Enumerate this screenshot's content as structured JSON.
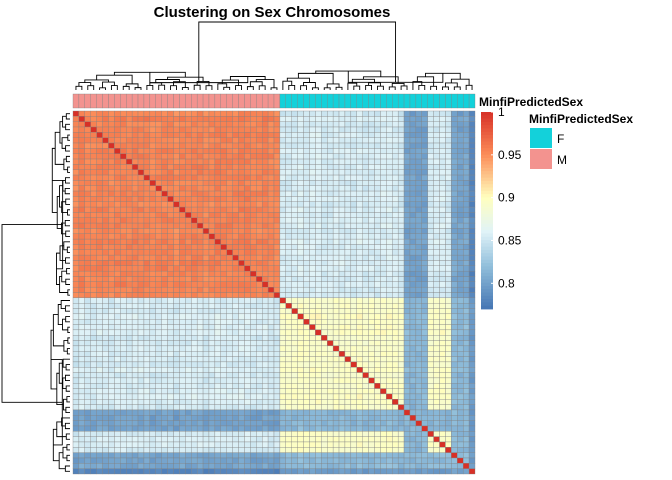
{
  "chart_data": {
    "type": "heatmap",
    "title": "Clustering on Sex Chromosomes",
    "n_samples": 68,
    "annotation": {
      "name": "MinfiPredictedSex",
      "sample_labels_in_order": [
        "M",
        "M",
        "M",
        "M",
        "M",
        "M",
        "M",
        "M",
        "M",
        "M",
        "M",
        "M",
        "M",
        "M",
        "M",
        "M",
        "M",
        "M",
        "M",
        "M",
        "M",
        "M",
        "M",
        "M",
        "M",
        "M",
        "M",
        "M",
        "M",
        "M",
        "M",
        "M",
        "M",
        "M",
        "M",
        "F",
        "F",
        "F",
        "F",
        "F",
        "F",
        "F",
        "F",
        "F",
        "F",
        "F",
        "F",
        "F",
        "F",
        "F",
        "F",
        "F",
        "F",
        "F",
        "F",
        "F",
        "F",
        "F",
        "F",
        "F",
        "F",
        "F",
        "F",
        "F",
        "F",
        "F",
        "F",
        "F"
      ],
      "legend_title": "MinfiPredictedSex",
      "levels": [
        {
          "label": "F",
          "color": "#13D1DA"
        },
        {
          "label": "M",
          "color": "#F3938F"
        }
      ]
    },
    "color_scale": {
      "title": "",
      "range": [
        0.77,
        1.0
      ],
      "ticks": [
        {
          "value": 1.0,
          "label": "1"
        },
        {
          "value": 0.95,
          "label": "0.95"
        },
        {
          "value": 0.9,
          "label": "0.9"
        },
        {
          "value": 0.85,
          "label": "0.85"
        },
        {
          "value": 0.8,
          "label": "0.8"
        }
      ],
      "stops": [
        {
          "value": 0.77,
          "color": "#4575B4"
        },
        {
          "value": 0.82,
          "color": "#91BFDB"
        },
        {
          "value": 0.86,
          "color": "#E0F3F8"
        },
        {
          "value": 0.9,
          "color": "#FFFFBF"
        },
        {
          "value": 0.95,
          "color": "#FC8D59"
        },
        {
          "value": 1.0,
          "color": "#D73027"
        }
      ]
    },
    "blocks": {
      "diagonal": 1.0,
      "male_male": 0.955,
      "female_female": 0.895,
      "male_female": 0.855,
      "male_female_low": 0.8,
      "female_female_low": 0.815
    },
    "grid_line_color": "#808080"
  }
}
